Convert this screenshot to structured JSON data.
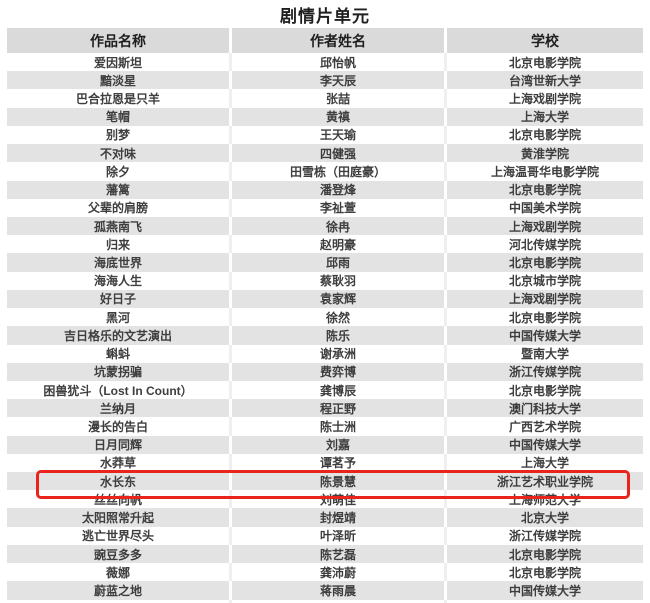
{
  "page_title": "剧情片单元",
  "table": {
    "columns": [
      "作品名称",
      "作者姓名",
      "学校"
    ],
    "rows": [
      [
        "爱因斯坦",
        "邱怡帆",
        "北京电影学院"
      ],
      [
        "黯淡星",
        "李天辰",
        "台湾世新大学"
      ],
      [
        "巴合拉恩是只羊",
        "张喆",
        "上海戏剧学院"
      ],
      [
        "笔帽",
        "黄禛",
        "上海大学"
      ],
      [
        "别梦",
        "王天瑜",
        "北京电影学院"
      ],
      [
        "不对味",
        "四健强",
        "黄淮学院"
      ],
      [
        "除夕",
        "田雪栋（田庭豪）",
        "上海温哥华电影学院"
      ],
      [
        "藩篱",
        "潘登烽",
        "北京电影学院"
      ],
      [
        "父辈的肩膀",
        "李祉萱",
        "中国美术学院"
      ],
      [
        "孤燕南飞",
        "徐冉",
        "上海戏剧学院"
      ],
      [
        "归来",
        "赵明豪",
        "河北传媒学院"
      ],
      [
        "海底世界",
        "邱雨",
        "北京电影学院"
      ],
      [
        "海海人生",
        "蔡耿羽",
        "北京城市学院"
      ],
      [
        "好日子",
        "袁家辉",
        "上海戏剧学院"
      ],
      [
        "黑河",
        "徐然",
        "北京电影学院"
      ],
      [
        "吉日格乐的文艺演出",
        "陈乐",
        "中国传媒大学"
      ],
      [
        "蝌蚪",
        "谢承洲",
        "暨南大学"
      ],
      [
        "坑蒙拐骗",
        "费弈博",
        "浙江传媒学院"
      ],
      [
        "困兽犹斗（Lost In Count）",
        "龚博辰",
        "北京电影学院"
      ],
      [
        "兰纳月",
        "程正野",
        "澳门科技大学"
      ],
      [
        "漫长的告白",
        "陈士洲",
        "广西艺术学院"
      ],
      [
        "日月同辉",
        "刘嘉",
        "中国传媒大学"
      ],
      [
        "水莽草",
        "谭茗予",
        "上海大学"
      ],
      [
        "水长东",
        "陈景慧",
        "浙江艺术职业学院"
      ],
      [
        "丝丝向帆",
        "刘萌佳",
        "上海师范大学"
      ],
      [
        "太阳照常升起",
        "封煜靖",
        "北京大学"
      ],
      [
        "逃亡世界尽头",
        "叶泽昕",
        "浙江传媒学院"
      ],
      [
        "豌豆多多",
        "陈艺磊",
        "北京电影学院"
      ],
      [
        "薇娜",
        "龚沛蔚",
        "北京电影学院"
      ],
      [
        "蔚蓝之地",
        "蒋雨晨",
        "中国传媒大学"
      ]
    ],
    "highlight": {
      "row_index": 23,
      "row_work": "水长东",
      "color": "#e8241d"
    }
  }
}
